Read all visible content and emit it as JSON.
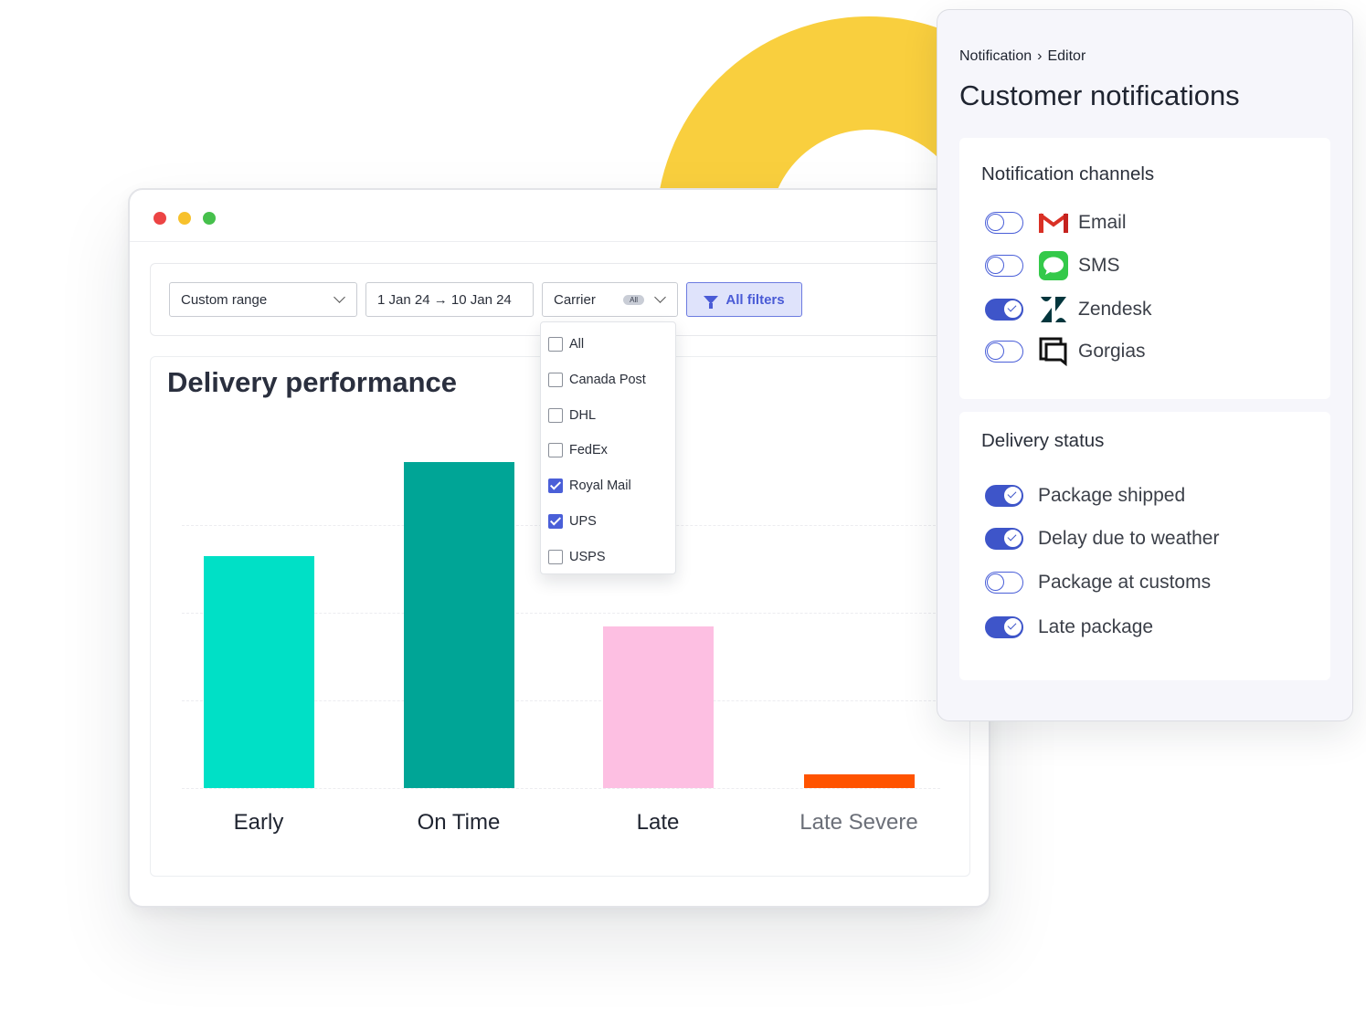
{
  "filters": {
    "range_label": "Custom range",
    "date_range": "1 Jan 24 → 10 Jan 24",
    "carrier_label": "Carrier",
    "carrier_badge": "All",
    "all_filters_label": "All filters"
  },
  "carrier_dropdown": {
    "options": [
      {
        "label": "All",
        "checked": false
      },
      {
        "label": "Canada Post",
        "checked": false
      },
      {
        "label": "DHL",
        "checked": false
      },
      {
        "label": "FedEx",
        "checked": false
      },
      {
        "label": "Royal Mail",
        "checked": true
      },
      {
        "label": "UPS",
        "checked": true
      },
      {
        "label": "USPS",
        "checked": false
      }
    ]
  },
  "chart_data": {
    "type": "bar",
    "title": "Delivery performance",
    "categories": [
      "Early",
      "On Time",
      "Late",
      "Late Severe"
    ],
    "values": [
      26.5,
      37.2,
      18.4,
      1.6
    ],
    "ylim": [
      0,
      40
    ],
    "grid": true,
    "colors": [
      "#00e0c6",
      "#00a596",
      "#fdbfe2",
      "#ff5300"
    ]
  },
  "notifications": {
    "breadcrumb": [
      "Notification",
      "Editor"
    ],
    "title": "Customer notifications",
    "channels_title": "Notification channels",
    "channels": [
      {
        "label": "Email",
        "icon": "gmail-icon",
        "enabled": false
      },
      {
        "label": "SMS",
        "icon": "sms-icon",
        "enabled": false
      },
      {
        "label": "Zendesk",
        "icon": "zendesk-icon",
        "enabled": true
      },
      {
        "label": "Gorgias",
        "icon": "gorgias-icon",
        "enabled": false
      }
    ],
    "status_title": "Delivery status",
    "statuses": [
      {
        "label": "Package shipped",
        "enabled": true
      },
      {
        "label": "Delay due to weather",
        "enabled": true
      },
      {
        "label": "Package at customs",
        "enabled": false
      },
      {
        "label": "Late package",
        "enabled": true
      }
    ]
  }
}
